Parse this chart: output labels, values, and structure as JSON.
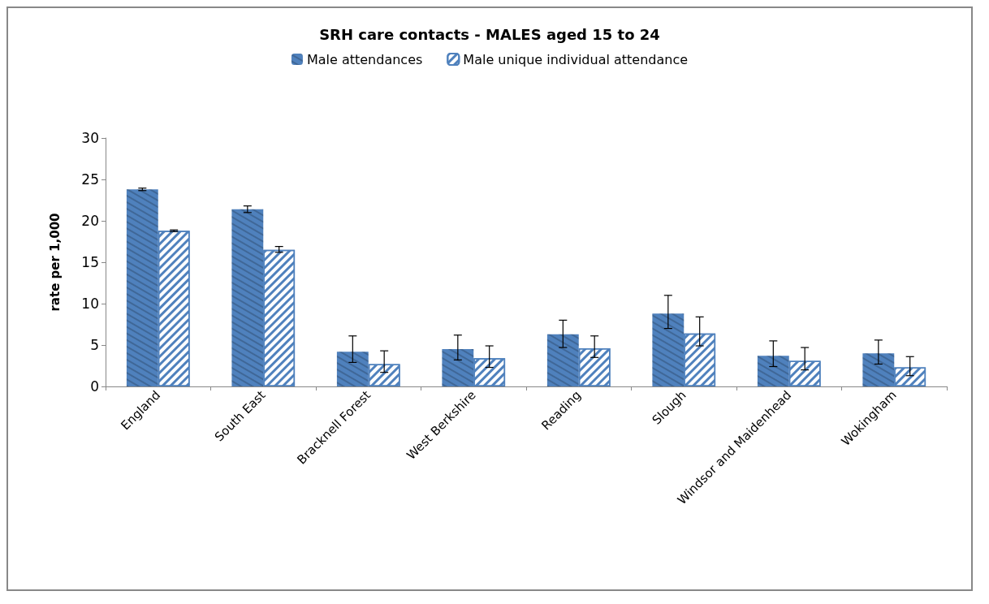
{
  "chart_data": {
    "type": "bar",
    "title": "SRH care contacts - MALES aged 15 to 24",
    "ylabel": "rate per 1,000",
    "categories": [
      "England",
      "South East",
      "Bracknell Forest",
      "West Berkshire",
      "Reading",
      "Slough",
      "Windsor and Maidenhead",
      "Wokingham"
    ],
    "series": [
      {
        "name": "Male attendances",
        "color": "#4f81bd",
        "values": [
          23.8,
          21.4,
          4.2,
          4.5,
          6.3,
          8.8,
          3.7,
          4.0
        ],
        "errors": [
          [
            23.65,
            23.95
          ],
          [
            21.0,
            21.8
          ],
          [
            2.9,
            6.1
          ],
          [
            3.2,
            6.2
          ],
          [
            4.7,
            8.0
          ],
          [
            7.0,
            11.0
          ],
          [
            2.4,
            5.5
          ],
          [
            2.7,
            5.6
          ]
        ]
      },
      {
        "name": "Male unique individual attendance",
        "color": "#4f81bd",
        "values": [
          18.8,
          16.5,
          2.7,
          3.4,
          4.6,
          6.4,
          3.1,
          2.3
        ],
        "errors": [
          [
            18.7,
            18.9
          ],
          [
            16.2,
            16.9
          ],
          [
            1.7,
            4.3
          ],
          [
            2.3,
            4.9
          ],
          [
            3.5,
            6.1
          ],
          [
            4.9,
            8.4
          ],
          [
            2.0,
            4.7
          ],
          [
            1.3,
            3.6
          ]
        ]
      }
    ],
    "ylim": [
      0,
      30
    ],
    "yticks": [
      0,
      5,
      10,
      15,
      20,
      25,
      30
    ],
    "grid": false,
    "legend": "top"
  }
}
